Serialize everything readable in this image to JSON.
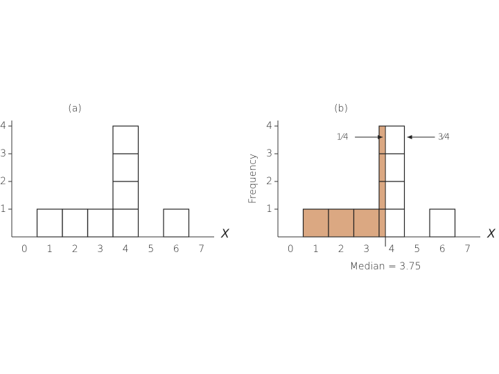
{
  "chart_data": [
    {
      "type": "histogram",
      "title": "(a)",
      "x_label": "X",
      "x": [
        1,
        2,
        3,
        4,
        5,
        6,
        7
      ],
      "values": [
        1,
        1,
        1,
        4,
        0,
        1,
        0
      ],
      "xlim": [
        -0.5,
        7.5
      ],
      "ylim": [
        0,
        4.2
      ],
      "xticks": [
        0,
        1,
        2,
        3,
        4,
        5,
        6,
        7
      ],
      "yticks": [
        1,
        2,
        3,
        4
      ]
    },
    {
      "type": "histogram",
      "title": "(b)",
      "x_label": "X",
      "y_label": "Frequency",
      "x": [
        1,
        2,
        3,
        4,
        5,
        6,
        7
      ],
      "values": [
        1,
        1,
        1,
        4,
        0,
        1,
        0
      ],
      "xlim": [
        -0.5,
        7.5
      ],
      "ylim": [
        0,
        4.2
      ],
      "xticks": [
        0,
        1,
        2,
        3,
        4,
        5,
        6,
        7
      ],
      "yticks": [
        1,
        2,
        3,
        4
      ],
      "median": 3.75,
      "shade_color": "#dba882",
      "annotations": {
        "median": "Median = 3.75",
        "left_fraction": "1⁄4",
        "right_fraction": "3⁄4"
      }
    }
  ]
}
